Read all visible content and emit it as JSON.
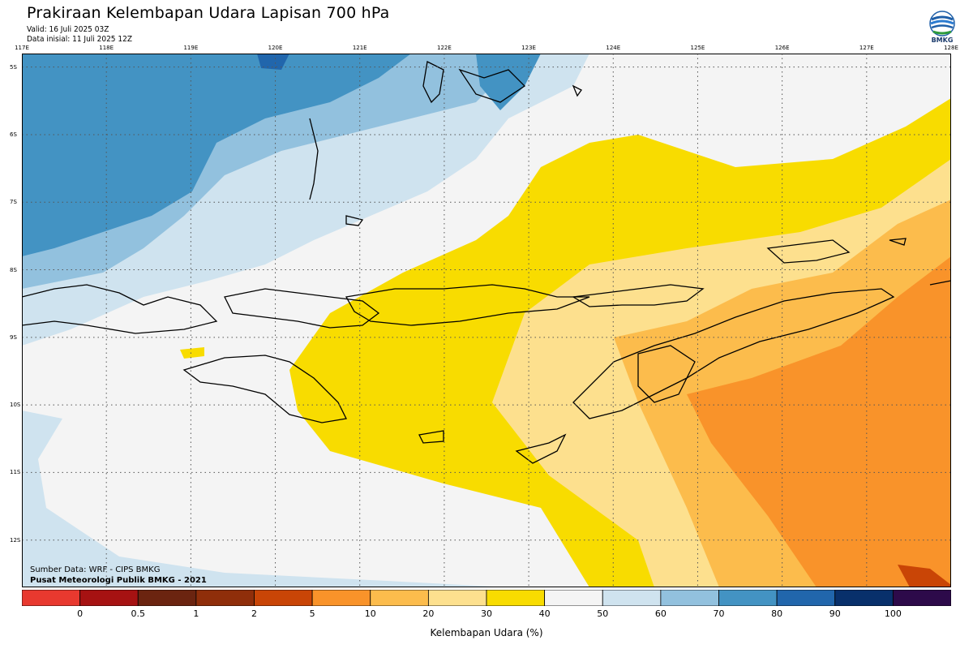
{
  "header": {
    "title": "Prakiraan Kelembapan Udara Lapisan 700 hPa",
    "valid": "Valid: 16 Juli 2025 03Z",
    "initial": "Data inisial: 11 Juli 2025 12Z",
    "logo_text": "BMKG"
  },
  "map": {
    "lon_labels": [
      "117E",
      "118E",
      "119E",
      "120E",
      "121E",
      "122E",
      "123E",
      "124E",
      "125E",
      "126E",
      "127E",
      "128E"
    ],
    "lat_labels": [
      "5S",
      "6S",
      "7S",
      "8S",
      "9S",
      "10S",
      "11S",
      "12S"
    ],
    "lon_range": [
      117,
      128
    ],
    "lat_range": [
      -4.8,
      -12.7
    ],
    "grid": "dotted"
  },
  "footer": {
    "source": "Sumber Data: WRF - CIPS BMKG",
    "org": "Pusat Meteorologi Publik BMKG - 2021"
  },
  "colorbar": {
    "label": "Kelembapan Udara (%)",
    "colors": [
      "#e8392f",
      "#a61212",
      "#6b2410",
      "#8f2e0a",
      "#c94506",
      "#f9932a",
      "#fcbc4c",
      "#fde08e",
      "#f8dc00",
      "#f4f4f4",
      "#cfe3ef",
      "#92c1de",
      "#4393c3",
      "#2166ac",
      "#08306b",
      "#2d0a4a"
    ],
    "ticks": [
      "0",
      "0.5",
      "1",
      "2",
      "5",
      "10",
      "20",
      "30",
      "40",
      "50",
      "60",
      "70",
      "80",
      "90",
      "100"
    ]
  }
}
